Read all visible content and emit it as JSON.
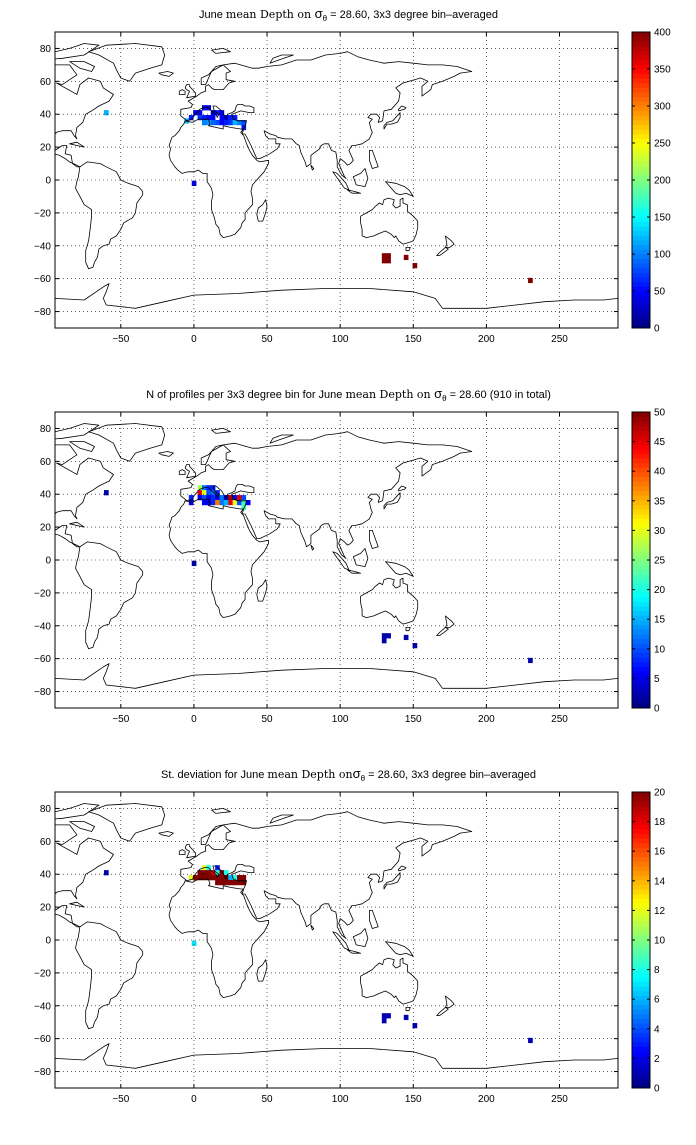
{
  "chart_data": [
    {
      "type": "heatmap",
      "title_parts": [
        "June ",
        "mean Depth on ",
        "σ",
        "θ",
        " = 28.60, 3x3 degree bin–averaged"
      ],
      "xlim": [
        -95,
        290
      ],
      "ylim": [
        -90,
        90
      ],
      "xticks": [
        -50,
        0,
        50,
        100,
        150,
        200,
        250
      ],
      "yticks": [
        -80,
        -60,
        -40,
        -20,
        0,
        20,
        40,
        60,
        80
      ],
      "grid": "dotted",
      "colorbar": {
        "min": 0,
        "max": 400,
        "ticks": [
          0,
          50,
          100,
          150,
          200,
          250,
          300,
          350,
          400
        ]
      },
      "bins": [
        {
          "lon": -60,
          "lat": 41,
          "value": 120
        },
        {
          "lon": 0,
          "lat": -2,
          "value": 40
        },
        {
          "lon": -5,
          "lat": 36,
          "value": 120
        },
        {
          "lon": -2,
          "lat": 38,
          "value": 60
        },
        {
          "lon": 1,
          "lat": 41,
          "value": 40
        },
        {
          "lon": 4,
          "lat": 41,
          "value": 40
        },
        {
          "lon": 7,
          "lat": 44,
          "value": 40
        },
        {
          "lon": 10,
          "lat": 44,
          "value": 40
        },
        {
          "lon": 13,
          "lat": 41,
          "value": 40
        },
        {
          "lon": 4,
          "lat": 38,
          "value": 70
        },
        {
          "lon": 7,
          "lat": 38,
          "value": 60
        },
        {
          "lon": 10,
          "lat": 38,
          "value": 50
        },
        {
          "lon": 13,
          "lat": 38,
          "value": 50
        },
        {
          "lon": 16,
          "lat": 41,
          "value": 60
        },
        {
          "lon": 19,
          "lat": 41,
          "value": 50
        },
        {
          "lon": 19,
          "lat": 38,
          "value": 50
        },
        {
          "lon": 22,
          "lat": 38,
          "value": 50
        },
        {
          "lon": 25,
          "lat": 38,
          "value": 60
        },
        {
          "lon": 28,
          "lat": 38,
          "value": 60
        },
        {
          "lon": 16,
          "lat": 35,
          "value": 80
        },
        {
          "lon": 19,
          "lat": 35,
          "value": 50
        },
        {
          "lon": 22,
          "lat": 35,
          "value": 60
        },
        {
          "lon": 25,
          "lat": 35,
          "value": 70
        },
        {
          "lon": 28,
          "lat": 35,
          "value": 120
        },
        {
          "lon": 31,
          "lat": 35,
          "value": 100
        },
        {
          "lon": 34,
          "lat": 35,
          "value": 80
        },
        {
          "lon": 13,
          "lat": 35,
          "value": 90
        },
        {
          "lon": 10,
          "lat": 35,
          "value": 110
        },
        {
          "lon": 7,
          "lat": 35,
          "value": 100
        },
        {
          "lon": 34,
          "lat": 32,
          "value": 60
        },
        {
          "lon": 130,
          "lat": -46,
          "value": 400
        },
        {
          "lon": 133,
          "lat": -46,
          "value": 400
        },
        {
          "lon": 130,
          "lat": -49,
          "value": 400
        },
        {
          "lon": 133,
          "lat": -49,
          "value": 400
        },
        {
          "lon": 145,
          "lat": -47,
          "value": 400
        },
        {
          "lon": 151,
          "lat": -52,
          "value": 400
        },
        {
          "lon": 230,
          "lat": -61,
          "value": 400
        }
      ]
    },
    {
      "type": "heatmap",
      "title_parts": [
        "N of profiles per 3x3 degree bin for June ",
        "mean Depth on ",
        "σ",
        "θ",
        " = 28.60 (910 in total)"
      ],
      "xlim": [
        -95,
        290
      ],
      "ylim": [
        -90,
        90
      ],
      "xticks": [
        -50,
        0,
        50,
        100,
        150,
        200,
        250
      ],
      "yticks": [
        -80,
        -60,
        -40,
        -20,
        0,
        20,
        40,
        60,
        80
      ],
      "grid": "dotted",
      "colorbar": {
        "min": 0,
        "max": 50,
        "ticks": [
          0,
          5,
          10,
          15,
          20,
          25,
          30,
          35,
          40,
          45,
          50
        ]
      },
      "bins": [
        {
          "lon": -60,
          "lat": 41,
          "value": 2
        },
        {
          "lon": 0,
          "lat": -2,
          "value": 2
        },
        {
          "lon": -2,
          "lat": 38,
          "value": 8
        },
        {
          "lon": -2,
          "lat": 35,
          "value": 5
        },
        {
          "lon": 4,
          "lat": 44,
          "value": 27
        },
        {
          "lon": 7,
          "lat": 44,
          "value": 12
        },
        {
          "lon": 4,
          "lat": 41,
          "value": 45
        },
        {
          "lon": 7,
          "lat": 41,
          "value": 30
        },
        {
          "lon": 10,
          "lat": 44,
          "value": 8
        },
        {
          "lon": 13,
          "lat": 44,
          "value": 8
        },
        {
          "lon": 10,
          "lat": 41,
          "value": 10
        },
        {
          "lon": 13,
          "lat": 41,
          "value": 12
        },
        {
          "lon": 16,
          "lat": 41,
          "value": 8
        },
        {
          "lon": 4,
          "lat": 38,
          "value": 6
        },
        {
          "lon": 7,
          "lat": 38,
          "value": 10
        },
        {
          "lon": 10,
          "lat": 38,
          "value": 5
        },
        {
          "lon": 13,
          "lat": 38,
          "value": 8
        },
        {
          "lon": 16,
          "lat": 38,
          "value": 5
        },
        {
          "lon": 19,
          "lat": 38,
          "value": 12
        },
        {
          "lon": 22,
          "lat": 38,
          "value": 5
        },
        {
          "lon": 25,
          "lat": 38,
          "value": 48
        },
        {
          "lon": 28,
          "lat": 38,
          "value": 6
        },
        {
          "lon": 31,
          "lat": 38,
          "value": 45
        },
        {
          "lon": 34,
          "lat": 38,
          "value": 10
        },
        {
          "lon": 7,
          "lat": 35,
          "value": 6
        },
        {
          "lon": 10,
          "lat": 35,
          "value": 5
        },
        {
          "lon": 13,
          "lat": 35,
          "value": 8
        },
        {
          "lon": 16,
          "lat": 35,
          "value": 38
        },
        {
          "lon": 19,
          "lat": 35,
          "value": 12
        },
        {
          "lon": 22,
          "lat": 35,
          "value": 15
        },
        {
          "lon": 25,
          "lat": 35,
          "value": 45
        },
        {
          "lon": 28,
          "lat": 35,
          "value": 30
        },
        {
          "lon": 31,
          "lat": 35,
          "value": 10
        },
        {
          "lon": 34,
          "lat": 35,
          "value": 22
        },
        {
          "lon": 37,
          "lat": 35,
          "value": 6
        },
        {
          "lon": 34,
          "lat": 32,
          "value": 22
        },
        {
          "lon": 130,
          "lat": -46,
          "value": 2
        },
        {
          "lon": 133,
          "lat": -46,
          "value": 2
        },
        {
          "lon": 130,
          "lat": -49,
          "value": 2
        },
        {
          "lon": 145,
          "lat": -47,
          "value": 2
        },
        {
          "lon": 151,
          "lat": -52,
          "value": 2
        },
        {
          "lon": 230,
          "lat": -61,
          "value": 2
        }
      ]
    },
    {
      "type": "heatmap",
      "title_parts": [
        "St. deviation for June ",
        "mean Depth on",
        "σ",
        "θ",
        " = 28.60, 3x3 degree bin–averaged"
      ],
      "xlim": [
        -95,
        290
      ],
      "ylim": [
        -90,
        90
      ],
      "xticks": [
        -50,
        0,
        50,
        100,
        150,
        200,
        250
      ],
      "yticks": [
        -80,
        -60,
        -40,
        -20,
        0,
        20,
        40,
        60,
        80
      ],
      "grid": "dotted",
      "colorbar": {
        "min": 0,
        "max": 20,
        "ticks": [
          0,
          2,
          4,
          6,
          8,
          10,
          12,
          14,
          16,
          18,
          20
        ]
      },
      "bins": [
        {
          "lon": -60,
          "lat": 41,
          "value": 1
        },
        {
          "lon": 0,
          "lat": -2,
          "value": 7
        },
        {
          "lon": -2,
          "lat": 38,
          "value": 12
        },
        {
          "lon": 1,
          "lat": 38,
          "value": 20
        },
        {
          "lon": 4,
          "lat": 38,
          "value": 20
        },
        {
          "lon": 7,
          "lat": 44,
          "value": 12
        },
        {
          "lon": 10,
          "lat": 44,
          "value": 8
        },
        {
          "lon": 4,
          "lat": 41,
          "value": 20
        },
        {
          "lon": 7,
          "lat": 41,
          "value": 20
        },
        {
          "lon": 10,
          "lat": 41,
          "value": 20
        },
        {
          "lon": 13,
          "lat": 41,
          "value": 18
        },
        {
          "lon": 16,
          "lat": 44,
          "value": 3
        },
        {
          "lon": 16,
          "lat": 41,
          "value": 8
        },
        {
          "lon": 19,
          "lat": 41,
          "value": 20
        },
        {
          "lon": 22,
          "lat": 41,
          "value": 8
        },
        {
          "lon": 7,
          "lat": 38,
          "value": 20
        },
        {
          "lon": 10,
          "lat": 38,
          "value": 20
        },
        {
          "lon": 13,
          "lat": 38,
          "value": 20
        },
        {
          "lon": 16,
          "lat": 38,
          "value": 20
        },
        {
          "lon": 19,
          "lat": 38,
          "value": 20
        },
        {
          "lon": 22,
          "lat": 38,
          "value": 20
        },
        {
          "lon": 25,
          "lat": 38,
          "value": 6
        },
        {
          "lon": 28,
          "lat": 38,
          "value": 8
        },
        {
          "lon": 31,
          "lat": 38,
          "value": 20
        },
        {
          "lon": 34,
          "lat": 38,
          "value": 20
        },
        {
          "lon": 16,
          "lat": 35,
          "value": 20
        },
        {
          "lon": 19,
          "lat": 35,
          "value": 20
        },
        {
          "lon": 22,
          "lat": 35,
          "value": 20
        },
        {
          "lon": 25,
          "lat": 35,
          "value": 20
        },
        {
          "lon": 28,
          "lat": 35,
          "value": 20
        },
        {
          "lon": 31,
          "lat": 35,
          "value": 20
        },
        {
          "lon": 34,
          "lat": 35,
          "value": 20
        },
        {
          "lon": 130,
          "lat": -46,
          "value": 1
        },
        {
          "lon": 133,
          "lat": -46,
          "value": 1
        },
        {
          "lon": 130,
          "lat": -49,
          "value": 1
        },
        {
          "lon": 145,
          "lat": -47,
          "value": 1
        },
        {
          "lon": 151,
          "lat": -52,
          "value": 1
        },
        {
          "lon": 230,
          "lat": -61,
          "value": 1
        }
      ]
    }
  ]
}
